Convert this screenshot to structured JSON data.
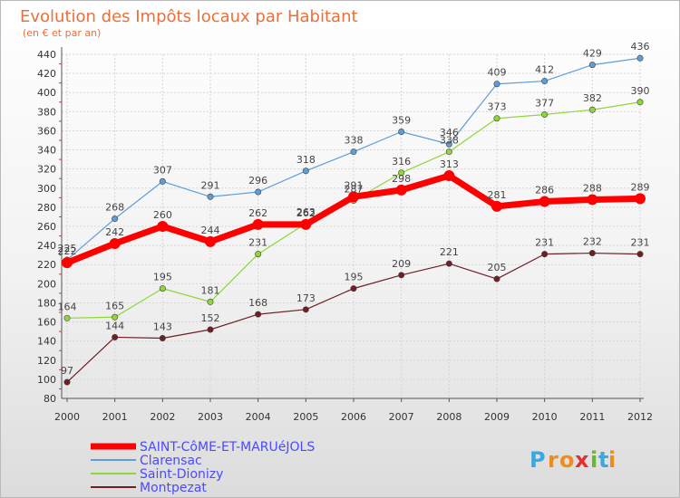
{
  "chart_data": {
    "type": "line",
    "title": "Evolution des Impôts locaux par Habitant",
    "subtitle": "(en € et par an)",
    "xlabel": "",
    "ylabel": "",
    "x": [
      "2000",
      "2001",
      "2002",
      "2003",
      "2004",
      "2005",
      "2006",
      "2007",
      "2008",
      "2009",
      "2010",
      "2011",
      "2012"
    ],
    "ylim": [
      80,
      440
    ],
    "yticks": [
      80,
      100,
      120,
      140,
      160,
      180,
      200,
      220,
      240,
      260,
      280,
      300,
      320,
      340,
      360,
      380,
      400,
      420,
      440
    ],
    "grid": true,
    "legend_position": "bottom-left",
    "series": [
      {
        "name": "SAINT-CôME-ET-MARUéJOLS",
        "color": "#ff0000",
        "values": [
          222,
          242,
          260,
          244,
          262,
          262,
          291,
          298,
          313,
          281,
          286,
          288,
          289
        ]
      },
      {
        "name": "Clarensac",
        "color": "#5e9dd6",
        "values": [
          225,
          268,
          307,
          291,
          296,
          318,
          338,
          359,
          346,
          409,
          412,
          429,
          436
        ]
      },
      {
        "name": "Saint-Dionizy",
        "color": "#8fd63a",
        "values": [
          164,
          165,
          195,
          181,
          231,
          263,
          287,
          316,
          338,
          373,
          377,
          382,
          390
        ]
      },
      {
        "name": "Montpezat",
        "color": "#6e1f24",
        "values": [
          97,
          144,
          143,
          152,
          168,
          173,
          195,
          209,
          221,
          205,
          231,
          232,
          231
        ]
      }
    ]
  },
  "logo": {
    "letters": [
      "P",
      "r",
      "o",
      "x",
      "i",
      "t",
      "i"
    ],
    "colors": [
      "#3aa7e0",
      "#f08c1e",
      "#f08c1e",
      "#e03030",
      "#66b82e",
      "#3aa7e0",
      "#f08c1e"
    ]
  }
}
